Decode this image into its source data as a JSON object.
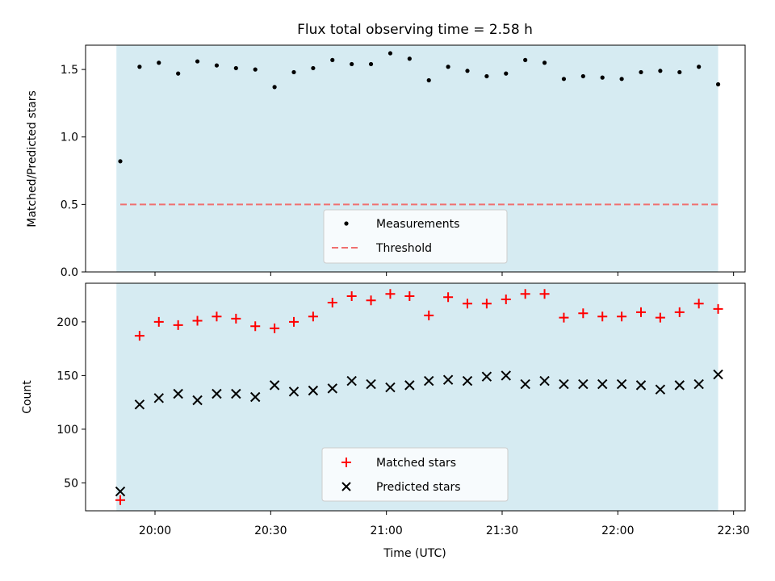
{
  "figure": {
    "title": "Flux total observing time = 2.58 h"
  },
  "chart_data": [
    {
      "type": "scatter",
      "title": "Flux total observing time = 2.58 h",
      "ylabel": "Matched/Predicted stars",
      "xlabel": "",
      "ylim": [
        0,
        1.68
      ],
      "yticks": [
        0.0,
        0.5,
        1.0,
        1.5
      ],
      "ytick_labels": [
        "0.0",
        "0.5",
        "1.0",
        "1.5"
      ],
      "grid": false,
      "legend": "lower-center",
      "shaded_range": [
        "19:50",
        "22:26"
      ],
      "series": [
        {
          "name": "Measurements",
          "marker": "dot",
          "color": "#000000",
          "points": [
            [
              "19:51",
              0.82
            ],
            [
              "19:56",
              1.52
            ],
            [
              "20:01",
              1.55
            ],
            [
              "20:06",
              1.47
            ],
            [
              "20:11",
              1.56
            ],
            [
              "20:16",
              1.53
            ],
            [
              "20:21",
              1.51
            ],
            [
              "20:26",
              1.5
            ],
            [
              "20:31",
              1.37
            ],
            [
              "20:36",
              1.48
            ],
            [
              "20:41",
              1.51
            ],
            [
              "20:46",
              1.57
            ],
            [
              "20:51",
              1.54
            ],
            [
              "20:56",
              1.54
            ],
            [
              "21:01",
              1.62
            ],
            [
              "21:06",
              1.58
            ],
            [
              "21:11",
              1.42
            ],
            [
              "21:16",
              1.52
            ],
            [
              "21:21",
              1.49
            ],
            [
              "21:26",
              1.45
            ],
            [
              "21:31",
              1.47
            ],
            [
              "21:36",
              1.57
            ],
            [
              "21:41",
              1.55
            ],
            [
              "21:46",
              1.43
            ],
            [
              "21:51",
              1.45
            ],
            [
              "21:56",
              1.44
            ],
            [
              "22:01",
              1.43
            ],
            [
              "22:06",
              1.48
            ],
            [
              "22:11",
              1.49
            ],
            [
              "22:16",
              1.48
            ],
            [
              "22:21",
              1.52
            ],
            [
              "22:26",
              1.39
            ]
          ]
        },
        {
          "name": "Threshold",
          "style": "dashed",
          "color": "#f07070",
          "points": [
            [
              "19:51",
              0.5
            ],
            [
              "22:26",
              0.5
            ]
          ]
        }
      ]
    },
    {
      "type": "scatter",
      "title": "",
      "xlabel": "Time (UTC)",
      "ylabel": "Count",
      "ylim": [
        24,
        236
      ],
      "yticks": [
        50,
        100,
        150,
        200
      ],
      "ytick_labels": [
        "50",
        "100",
        "150",
        "200"
      ],
      "xticks": [
        "20:00",
        "20:30",
        "21:00",
        "21:30",
        "22:00",
        "22:30"
      ],
      "grid": false,
      "legend": "lower-center",
      "shaded_range": [
        "19:50",
        "22:26"
      ],
      "series": [
        {
          "name": "Matched stars",
          "marker": "plus",
          "color": "#ff0000",
          "points": [
            [
              "19:51",
              34
            ],
            [
              "19:56",
              187
            ],
            [
              "20:01",
              200
            ],
            [
              "20:06",
              197
            ],
            [
              "20:11",
              201
            ],
            [
              "20:16",
              205
            ],
            [
              "20:21",
              203
            ],
            [
              "20:26",
              196
            ],
            [
              "20:31",
              194
            ],
            [
              "20:36",
              200
            ],
            [
              "20:41",
              205
            ],
            [
              "20:46",
              218
            ],
            [
              "20:51",
              224
            ],
            [
              "20:56",
              220
            ],
            [
              "21:01",
              226
            ],
            [
              "21:06",
              224
            ],
            [
              "21:11",
              206
            ],
            [
              "21:16",
              223
            ],
            [
              "21:21",
              217
            ],
            [
              "21:26",
              217
            ],
            [
              "21:31",
              221
            ],
            [
              "21:36",
              226
            ],
            [
              "21:41",
              226
            ],
            [
              "21:46",
              204
            ],
            [
              "21:51",
              208
            ],
            [
              "21:56",
              205
            ],
            [
              "22:01",
              205
            ],
            [
              "22:06",
              209
            ],
            [
              "22:11",
              204
            ],
            [
              "22:16",
              209
            ],
            [
              "22:21",
              217
            ],
            [
              "22:26",
              212
            ]
          ]
        },
        {
          "name": "Predicted stars",
          "marker": "x",
          "color": "#000000",
          "points": [
            [
              "19:51",
              42
            ],
            [
              "19:56",
              123
            ],
            [
              "20:01",
              129
            ],
            [
              "20:06",
              133
            ],
            [
              "20:11",
              127
            ],
            [
              "20:16",
              133
            ],
            [
              "20:21",
              133
            ],
            [
              "20:26",
              130
            ],
            [
              "20:31",
              141
            ],
            [
              "20:36",
              135
            ],
            [
              "20:41",
              136
            ],
            [
              "20:46",
              138
            ],
            [
              "20:51",
              145
            ],
            [
              "20:56",
              142
            ],
            [
              "21:01",
              139
            ],
            [
              "21:06",
              141
            ],
            [
              "21:11",
              145
            ],
            [
              "21:16",
              146
            ],
            [
              "21:21",
              145
            ],
            [
              "21:26",
              149
            ],
            [
              "21:31",
              150
            ],
            [
              "21:36",
              142
            ],
            [
              "21:41",
              145
            ],
            [
              "21:46",
              142
            ],
            [
              "21:51",
              142
            ],
            [
              "21:56",
              142
            ],
            [
              "22:01",
              142
            ],
            [
              "22:06",
              141
            ],
            [
              "22:11",
              137
            ],
            [
              "22:16",
              141
            ],
            [
              "22:21",
              142
            ],
            [
              "22:26",
              151
            ]
          ]
        }
      ]
    }
  ]
}
